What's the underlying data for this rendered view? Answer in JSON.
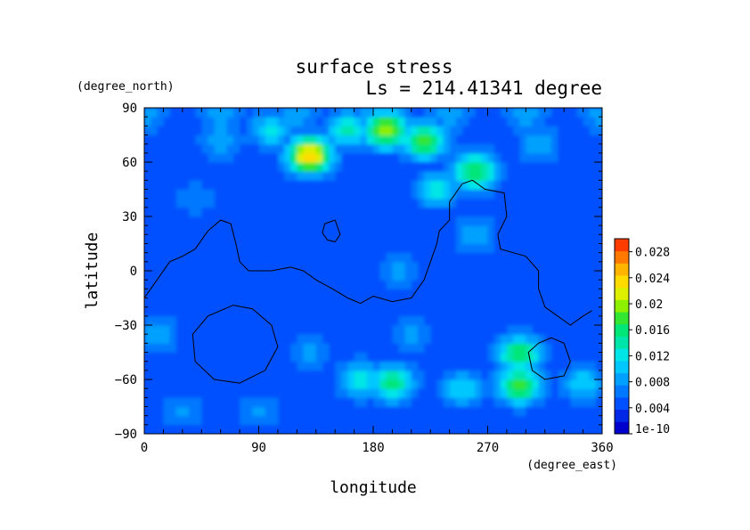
{
  "chart_data": {
    "type": "heatmap",
    "title": "surface stress",
    "subtitle": "Ls = 214.41341 degree",
    "xlabel": "longitude",
    "ylabel": "latitude",
    "x_units": "(degree_east)",
    "y_units": "(degree_north)",
    "xlim": [
      0,
      360
    ],
    "ylim": [
      -90,
      90
    ],
    "x_ticks": [
      0,
      90,
      180,
      270,
      360
    ],
    "y_ticks": [
      -90,
      -60,
      -30,
      0,
      30,
      60,
      90
    ],
    "x_tick_labels": [
      "0",
      "90",
      "180",
      "270",
      "360"
    ],
    "y_tick_labels": [
      "−90",
      "−60",
      "−30",
      "0",
      "30",
      "60",
      "90"
    ],
    "colorbar": {
      "range": [
        0,
        0.03
      ],
      "tick_values": [
        0,
        0.004,
        0.008,
        0.012,
        0.016,
        0.02,
        0.024,
        0.028
      ],
      "tick_labels": [
        "1e-10",
        "0.004",
        "0.008",
        "0.012",
        "0.016",
        "0.02",
        "0.024",
        "0.028"
      ],
      "colors": [
        "#0000cd",
        "#0028e6",
        "#0050ff",
        "#0078ff",
        "#00a0ff",
        "#00c8ff",
        "#00e6e6",
        "#00e6aa",
        "#00e678",
        "#32e632",
        "#8cf000",
        "#dcf000",
        "#ffdc00",
        "#ffb400",
        "#ff7800",
        "#ff3c00"
      ]
    },
    "grid": false,
    "field_grid": {
      "lon_step": 15,
      "lat_step": 15,
      "lons": [
        0,
        15,
        30,
        45,
        60,
        75,
        90,
        105,
        120,
        135,
        150,
        165,
        180,
        195,
        210,
        225,
        240,
        255,
        270,
        285,
        300,
        315,
        330,
        345,
        360
      ],
      "lats": [
        -90,
        -75,
        -60,
        -45,
        -30,
        -15,
        0,
        15,
        30,
        45,
        60,
        75,
        90
      ],
      "background_value": 0.004,
      "features": [
        {
          "lon": 0,
          "lat": 87,
          "value": 0.009
        },
        {
          "lon": 60,
          "lat": 87,
          "value": 0.009
        },
        {
          "lon": 120,
          "lat": 87,
          "value": 0.009
        },
        {
          "lon": 180,
          "lat": 87,
          "value": 0.009
        },
        {
          "lon": 240,
          "lat": 87,
          "value": 0.009
        },
        {
          "lon": 300,
          "lat": 87,
          "value": 0.009
        },
        {
          "lon": 360,
          "lat": 87,
          "value": 0.009
        },
        {
          "lon": 130,
          "lat": 64,
          "value": 0.025
        },
        {
          "lon": 190,
          "lat": 78,
          "value": 0.021
        },
        {
          "lon": 220,
          "lat": 72,
          "value": 0.018
        },
        {
          "lon": 160,
          "lat": 78,
          "value": 0.014
        },
        {
          "lon": 100,
          "lat": 78,
          "value": 0.012
        },
        {
          "lon": 260,
          "lat": 55,
          "value": 0.018
        },
        {
          "lon": 230,
          "lat": 45,
          "value": 0.012
        },
        {
          "lon": 60,
          "lat": 72,
          "value": 0.009
        },
        {
          "lon": 310,
          "lat": 70,
          "value": 0.009
        },
        {
          "lon": 295,
          "lat": -46,
          "value": 0.017
        },
        {
          "lon": 295,
          "lat": -63,
          "value": 0.019
        },
        {
          "lon": 195,
          "lat": -62,
          "value": 0.016
        },
        {
          "lon": 170,
          "lat": -60,
          "value": 0.013
        },
        {
          "lon": 250,
          "lat": -65,
          "value": 0.011
        },
        {
          "lon": 345,
          "lat": -62,
          "value": 0.011
        },
        {
          "lon": 90,
          "lat": -78,
          "value": 0.008
        },
        {
          "lon": 30,
          "lat": -77,
          "value": 0.008
        },
        {
          "lon": 10,
          "lat": -35,
          "value": 0.009
        },
        {
          "lon": 130,
          "lat": -45,
          "value": 0.008
        },
        {
          "lon": 210,
          "lat": -35,
          "value": 0.008
        },
        {
          "lon": 260,
          "lat": 20,
          "value": 0.009
        },
        {
          "lon": 200,
          "lat": 0,
          "value": 0.008
        },
        {
          "lon": 40,
          "lat": 40,
          "value": 0.007
        }
      ]
    },
    "contour_lines": [
      {
        "closed": false,
        "points": [
          [
            0,
            -15
          ],
          [
            10,
            -5
          ],
          [
            20,
            5
          ],
          [
            30,
            8
          ],
          [
            40,
            12
          ],
          [
            50,
            22
          ],
          [
            60,
            28
          ],
          [
            68,
            26
          ],
          [
            72,
            15
          ],
          [
            75,
            5
          ],
          [
            82,
            0
          ],
          [
            100,
            0
          ],
          [
            115,
            2
          ],
          [
            125,
            0
          ],
          [
            135,
            -5
          ],
          [
            148,
            -10
          ],
          [
            160,
            -15
          ],
          [
            170,
            -18
          ],
          [
            180,
            -14
          ],
          [
            195,
            -17
          ],
          [
            210,
            -15
          ],
          [
            220,
            -5
          ],
          [
            225,
            5
          ],
          [
            230,
            15
          ],
          [
            232,
            22
          ],
          [
            240,
            28
          ],
          [
            240,
            38
          ],
          [
            250,
            48
          ],
          [
            258,
            50
          ],
          [
            268,
            45
          ],
          [
            283,
            43
          ],
          [
            285,
            30
          ],
          [
            278,
            20
          ],
          [
            280,
            12
          ],
          [
            290,
            10
          ],
          [
            300,
            8
          ],
          [
            310,
            0
          ],
          [
            310,
            -10
          ],
          [
            315,
            -20
          ],
          [
            325,
            -25
          ],
          [
            335,
            -30
          ],
          [
            345,
            -25
          ],
          [
            352,
            -22
          ]
        ]
      },
      {
        "closed": true,
        "points": [
          [
            142,
            26
          ],
          [
            150,
            28
          ],
          [
            154,
            20
          ],
          [
            150,
            16
          ],
          [
            144,
            17
          ],
          [
            140,
            21
          ]
        ]
      },
      {
        "closed": true,
        "points": [
          [
            70,
            -19
          ],
          [
            85,
            -21
          ],
          [
            100,
            -30
          ],
          [
            105,
            -42
          ],
          [
            95,
            -55
          ],
          [
            75,
            -62
          ],
          [
            55,
            -60
          ],
          [
            40,
            -50
          ],
          [
            38,
            -35
          ],
          [
            50,
            -25
          ]
        ]
      },
      {
        "closed": true,
        "points": [
          [
            320,
            -37
          ],
          [
            330,
            -40
          ],
          [
            335,
            -50
          ],
          [
            330,
            -58
          ],
          [
            315,
            -60
          ],
          [
            305,
            -55
          ],
          [
            302,
            -45
          ],
          [
            310,
            -40
          ]
        ]
      }
    ]
  }
}
